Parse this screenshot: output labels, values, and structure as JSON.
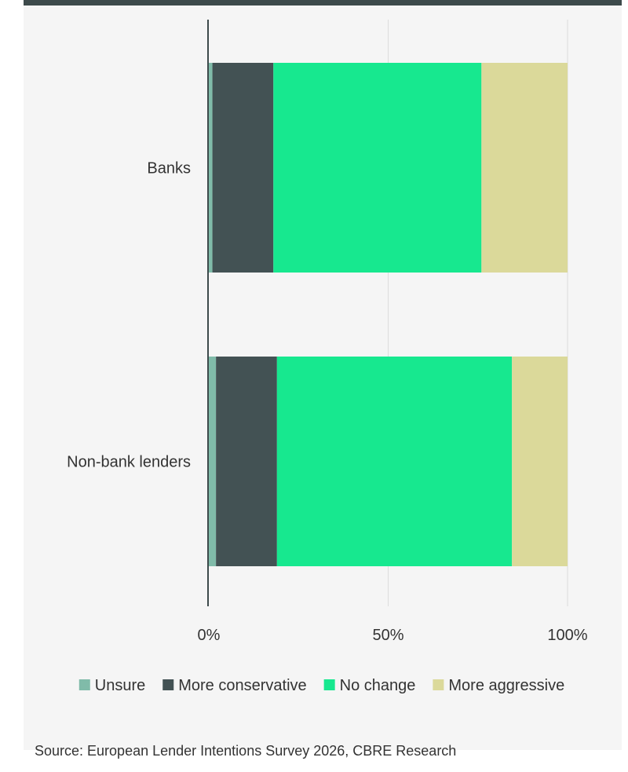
{
  "chart_data": {
    "type": "bar",
    "orientation": "horizontal",
    "stacked": true,
    "categories": [
      "Banks",
      "Non-bank lenders"
    ],
    "series": [
      {
        "name": "Unsure",
        "values": [
          1,
          2
        ],
        "color": "#80bba9"
      },
      {
        "name": "More conservative",
        "values": [
          17,
          17
        ],
        "color": "#435254"
      },
      {
        "name": "No change",
        "values": [
          58,
          65.5
        ],
        "color": "#17e88f"
      },
      {
        "name": "More aggressive",
        "values": [
          24,
          15.5
        ],
        "color": "#dbd99a"
      }
    ],
    "xlim": [
      0,
      100
    ],
    "xticks": [
      {
        "value": 0,
        "label": "0%"
      },
      {
        "value": 50,
        "label": "50%"
      },
      {
        "value": 100,
        "label": "100%"
      }
    ],
    "grid": true,
    "legend_position": "bottom"
  },
  "source": "Source: European Lender Intentions Survey 2026, CBRE Research"
}
